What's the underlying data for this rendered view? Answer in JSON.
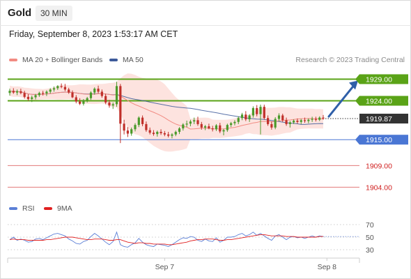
{
  "header": {
    "instrument": "Gold",
    "timeframe": "30 MIN",
    "datetime": "Friday, September 8, 2023 1:53:17 AM CET"
  },
  "legend": {
    "main": [
      {
        "label": "MA 20 + Bollinger Bands",
        "color": "#f28b82"
      },
      {
        "label": "MA 50",
        "color": "#3d5a9a"
      }
    ],
    "rsi": [
      {
        "label": "RSI",
        "color": "#5b7fd6"
      },
      {
        "label": "9MA",
        "color": "#e02020"
      }
    ]
  },
  "credit": "Research © 2023 Trading Central",
  "colors": {
    "resistance": "#5aa317",
    "support": "#4a76d4",
    "minor_support": "#e27a7a",
    "up_candle": "#4a9a2a",
    "down_candle": "#c0302a",
    "band_fill": "#fde0dc",
    "arrow": "#2f5fa8",
    "current": "#333333"
  },
  "chart_data": [
    {
      "type": "candlestick",
      "y_axis_range": [
        1900.5,
        1931.5
      ],
      "x_tick_labels": [
        {
          "label": "Sep 7",
          "bar": 42
        },
        {
          "label": "Sep 8",
          "bar": 86
        }
      ],
      "levels": [
        {
          "label": "1929.00",
          "value": 1929.0,
          "kind": "resistance"
        },
        {
          "label": "1924.00",
          "value": 1924.0,
          "kind": "resistance"
        },
        {
          "label": "1919.87",
          "value": 1919.87,
          "kind": "current"
        },
        {
          "label": "1915.00",
          "value": 1915.0,
          "kind": "support"
        },
        {
          "label": "1909.00",
          "value": 1909.0,
          "kind": "minor_support"
        },
        {
          "label": "1904.00",
          "value": 1904.0,
          "kind": "minor_support"
        }
      ],
      "projection": {
        "from": 1919.87,
        "to": 1929.0
      },
      "ohlc": [
        [
          1925.8,
          1926.8,
          1925.2,
          1926.3
        ],
        [
          1926.3,
          1926.9,
          1925.6,
          1925.9
        ],
        [
          1925.9,
          1926.6,
          1925.3,
          1926.2
        ],
        [
          1926.2,
          1926.8,
          1925.5,
          1925.8
        ],
        [
          1925.8,
          1926.3,
          1924.5,
          1924.9
        ],
        [
          1924.9,
          1925.5,
          1924.0,
          1924.4
        ],
        [
          1924.4,
          1925.2,
          1923.7,
          1924.8
        ],
        [
          1924.8,
          1925.6,
          1924.3,
          1925.3
        ],
        [
          1925.3,
          1926.1,
          1924.9,
          1925.8
        ],
        [
          1925.8,
          1926.3,
          1925.2,
          1925.7
        ],
        [
          1925.7,
          1926.4,
          1925.1,
          1926.1
        ],
        [
          1926.1,
          1926.9,
          1925.7,
          1926.6
        ],
        [
          1926.6,
          1927.3,
          1926.1,
          1926.9
        ],
        [
          1926.9,
          1927.6,
          1926.5,
          1927.4
        ],
        [
          1927.4,
          1928.0,
          1926.9,
          1927.2
        ],
        [
          1927.2,
          1927.9,
          1926.2,
          1926.6
        ],
        [
          1926.6,
          1927.0,
          1925.6,
          1925.9
        ],
        [
          1925.9,
          1926.4,
          1924.6,
          1924.8
        ],
        [
          1924.8,
          1925.3,
          1923.4,
          1923.8
        ],
        [
          1923.8,
          1924.6,
          1923.0,
          1923.3
        ],
        [
          1923.3,
          1924.4,
          1922.9,
          1924.1
        ],
        [
          1924.1,
          1924.9,
          1923.6,
          1924.6
        ],
        [
          1924.6,
          1926.2,
          1924.2,
          1925.9
        ],
        [
          1925.9,
          1927.1,
          1925.4,
          1926.8
        ],
        [
          1926.8,
          1927.5,
          1925.7,
          1926.1
        ],
        [
          1926.1,
          1926.6,
          1924.7,
          1925.1
        ],
        [
          1925.1,
          1925.6,
          1923.2,
          1923.6
        ],
        [
          1923.6,
          1924.2,
          1922.4,
          1922.9
        ],
        [
          1922.9,
          1923.6,
          1922.1,
          1923.2
        ],
        [
          1923.2,
          1928.4,
          1922.6,
          1927.4
        ],
        [
          1927.4,
          1927.9,
          1914.2,
          1918.7
        ],
        [
          1918.7,
          1919.6,
          1916.2,
          1917.1
        ],
        [
          1917.1,
          1917.9,
          1915.6,
          1916.4
        ],
        [
          1916.4,
          1917.8,
          1915.9,
          1917.4
        ],
        [
          1917.4,
          1918.8,
          1916.9,
          1918.4
        ],
        [
          1918.4,
          1920.4,
          1917.9,
          1920.1
        ],
        [
          1920.1,
          1920.6,
          1918.1,
          1918.6
        ],
        [
          1918.6,
          1919.2,
          1916.8,
          1917.2
        ],
        [
          1917.2,
          1917.8,
          1916.2,
          1916.6
        ],
        [
          1916.6,
          1917.2,
          1915.9,
          1916.3
        ],
        [
          1916.3,
          1917.1,
          1915.7,
          1916.8
        ],
        [
          1916.8,
          1917.4,
          1916.1,
          1916.5
        ],
        [
          1916.5,
          1917.0,
          1915.8,
          1916.2
        ],
        [
          1916.2,
          1916.8,
          1915.5,
          1915.9
        ],
        [
          1915.9,
          1916.5,
          1915.3,
          1916.2
        ],
        [
          1916.2,
          1917.1,
          1915.8,
          1916.8
        ],
        [
          1916.8,
          1917.9,
          1916.3,
          1917.6
        ],
        [
          1917.6,
          1918.8,
          1917.1,
          1918.5
        ],
        [
          1918.5,
          1919.4,
          1917.9,
          1918.7
        ],
        [
          1918.7,
          1919.6,
          1918.1,
          1919.2
        ],
        [
          1919.2,
          1920.1,
          1918.6,
          1919.5
        ],
        [
          1919.5,
          1920.3,
          1918.2,
          1918.6
        ],
        [
          1918.6,
          1919.1,
          1917.3,
          1917.8
        ],
        [
          1917.8,
          1918.4,
          1917.2,
          1918.1
        ],
        [
          1918.1,
          1918.7,
          1917.4,
          1917.6
        ],
        [
          1917.6,
          1918.2,
          1916.9,
          1917.4
        ],
        [
          1917.4,
          1918.6,
          1917.0,
          1918.3
        ],
        [
          1918.3,
          1918.9,
          1916.5,
          1916.9
        ],
        [
          1916.9,
          1917.5,
          1916.0,
          1917.2
        ],
        [
          1917.2,
          1918.7,
          1916.8,
          1918.4
        ],
        [
          1918.4,
          1919.1,
          1917.9,
          1918.8
        ],
        [
          1918.8,
          1919.5,
          1918.3,
          1919.1
        ],
        [
          1919.1,
          1920.4,
          1918.6,
          1920.0
        ],
        [
          1920.0,
          1921.2,
          1919.5,
          1920.8
        ],
        [
          1920.8,
          1921.6,
          1919.3,
          1919.7
        ],
        [
          1919.7,
          1920.9,
          1919.1,
          1920.6
        ],
        [
          1920.6,
          1922.7,
          1920.1,
          1922.3
        ],
        [
          1922.3,
          1923.0,
          1920.4,
          1920.9
        ],
        [
          1920.9,
          1923.1,
          1916.2,
          1922.6
        ],
        [
          1922.6,
          1923.1,
          1919.6,
          1920.0
        ],
        [
          1920.0,
          1920.6,
          1918.2,
          1918.6
        ],
        [
          1918.6,
          1919.2,
          1917.3,
          1917.8
        ],
        [
          1917.8,
          1920.2,
          1917.4,
          1919.8
        ],
        [
          1919.8,
          1921.1,
          1919.3,
          1920.6
        ],
        [
          1920.6,
          1921.0,
          1919.1,
          1919.5
        ],
        [
          1919.5,
          1920.1,
          1918.2,
          1918.6
        ],
        [
          1918.6,
          1919.3,
          1917.8,
          1919.0
        ],
        [
          1919.0,
          1919.7,
          1918.6,
          1919.4
        ],
        [
          1919.4,
          1919.9,
          1918.7,
          1919.1
        ],
        [
          1919.1,
          1919.8,
          1918.6,
          1919.5
        ],
        [
          1919.5,
          1920.1,
          1918.9,
          1919.3
        ],
        [
          1919.3,
          1919.9,
          1918.8,
          1919.6
        ],
        [
          1919.6,
          1920.3,
          1919.1,
          1919.8
        ],
        [
          1919.8,
          1920.3,
          1919.2,
          1919.6
        ],
        [
          1919.6,
          1920.4,
          1919.3,
          1920.1
        ],
        [
          1920.1,
          1920.7,
          1919.6,
          1919.87
        ]
      ]
    },
    {
      "type": "line",
      "name": "RSI",
      "y_axis_ticks": [
        70,
        50,
        30
      ],
      "y_axis_range": [
        20,
        80
      ],
      "series": [
        {
          "name": "RSI",
          "values": [
            46,
            50,
            45,
            47,
            45,
            42,
            43,
            47,
            48,
            46,
            49,
            52,
            55,
            56,
            54,
            52,
            47,
            44,
            40,
            39,
            43,
            45,
            51,
            56,
            52,
            47,
            42,
            38,
            43,
            58,
            38,
            35,
            34,
            38,
            41,
            48,
            42,
            38,
            36,
            35,
            39,
            38,
            37,
            35,
            38,
            42,
            46,
            49,
            48,
            51,
            50,
            45,
            43,
            47,
            44,
            43,
            49,
            42,
            45,
            50,
            50,
            51,
            54,
            56,
            52,
            54,
            58,
            53,
            56,
            52,
            48,
            45,
            52,
            54,
            50,
            46,
            50,
            51,
            49,
            50,
            48,
            50,
            52,
            50,
            52,
            51
          ]
        },
        {
          "name": "9MA",
          "values": [
            46,
            47,
            46,
            46,
            46,
            45,
            45,
            45,
            45,
            45,
            46,
            46,
            47,
            48,
            49,
            50,
            50,
            50,
            49,
            48,
            47,
            46,
            46,
            47,
            47,
            47,
            46,
            45,
            45,
            46,
            46,
            44,
            42,
            41,
            40,
            41,
            41,
            40,
            40,
            39,
            39,
            39,
            39,
            38,
            38,
            39,
            40,
            41,
            42,
            44,
            45,
            46,
            46,
            47,
            47,
            47,
            46,
            45,
            45,
            46,
            46,
            47,
            48,
            49,
            50,
            51,
            52,
            53,
            54,
            54,
            53,
            52,
            52,
            52,
            52,
            51,
            51,
            51,
            50,
            50,
            50,
            50,
            50,
            50,
            51,
            51
          ]
        }
      ]
    }
  ]
}
